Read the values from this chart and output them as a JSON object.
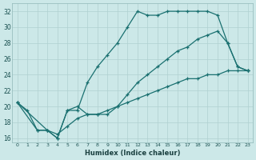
{
  "xlabel": "Humidex (Indice chaleur)",
  "bg_color": "#cce8e8",
  "grid_color": "#b0d0d0",
  "line_color": "#1a7070",
  "xlim": [
    -0.5,
    23.5
  ],
  "ylim": [
    15.5,
    33
  ],
  "xticks": [
    0,
    1,
    2,
    3,
    4,
    5,
    6,
    7,
    8,
    9,
    10,
    11,
    12,
    13,
    14,
    15,
    16,
    17,
    18,
    19,
    20,
    21,
    22,
    23
  ],
  "yticks": [
    16,
    18,
    20,
    22,
    24,
    26,
    28,
    30,
    32
  ],
  "line1": {
    "x": [
      0,
      1,
      2,
      3,
      4,
      5,
      6,
      7,
      8,
      9,
      10,
      11,
      12,
      13,
      14,
      15,
      16,
      17,
      18,
      19,
      20,
      21,
      22,
      23
    ],
    "y": [
      20.5,
      19.5,
      17.0,
      17.0,
      16.0,
      19.5,
      19.5,
      23.0,
      25.0,
      26.5,
      28.0,
      30.0,
      32.0,
      31.5,
      31.5,
      32.0,
      32.0,
      32.0,
      32.0,
      32.0,
      31.5,
      28.0,
      25.0,
      24.5
    ]
  },
  "line2": {
    "x": [
      0,
      3,
      4,
      5,
      6,
      7,
      8,
      9,
      10,
      11,
      12,
      13,
      14,
      15,
      16,
      17,
      18,
      19,
      20,
      21,
      22,
      23
    ],
    "y": [
      20.5,
      17.0,
      16.0,
      19.5,
      20.0,
      19.0,
      19.0,
      19.0,
      20.0,
      21.5,
      23.0,
      24.0,
      25.0,
      26.0,
      27.0,
      27.5,
      28.5,
      29.0,
      29.5,
      28.0,
      25.0,
      24.5
    ]
  },
  "line3": {
    "x": [
      0,
      2,
      3,
      4,
      5,
      6,
      7,
      8,
      9,
      10,
      11,
      12,
      13,
      14,
      15,
      16,
      17,
      18,
      19,
      20,
      21,
      22,
      23
    ],
    "y": [
      20.5,
      17.0,
      17.0,
      16.5,
      17.5,
      18.5,
      19.0,
      19.0,
      19.5,
      20.0,
      20.5,
      21.0,
      21.5,
      22.0,
      22.5,
      23.0,
      23.5,
      23.5,
      24.0,
      24.0,
      24.5,
      24.5,
      24.5
    ]
  }
}
